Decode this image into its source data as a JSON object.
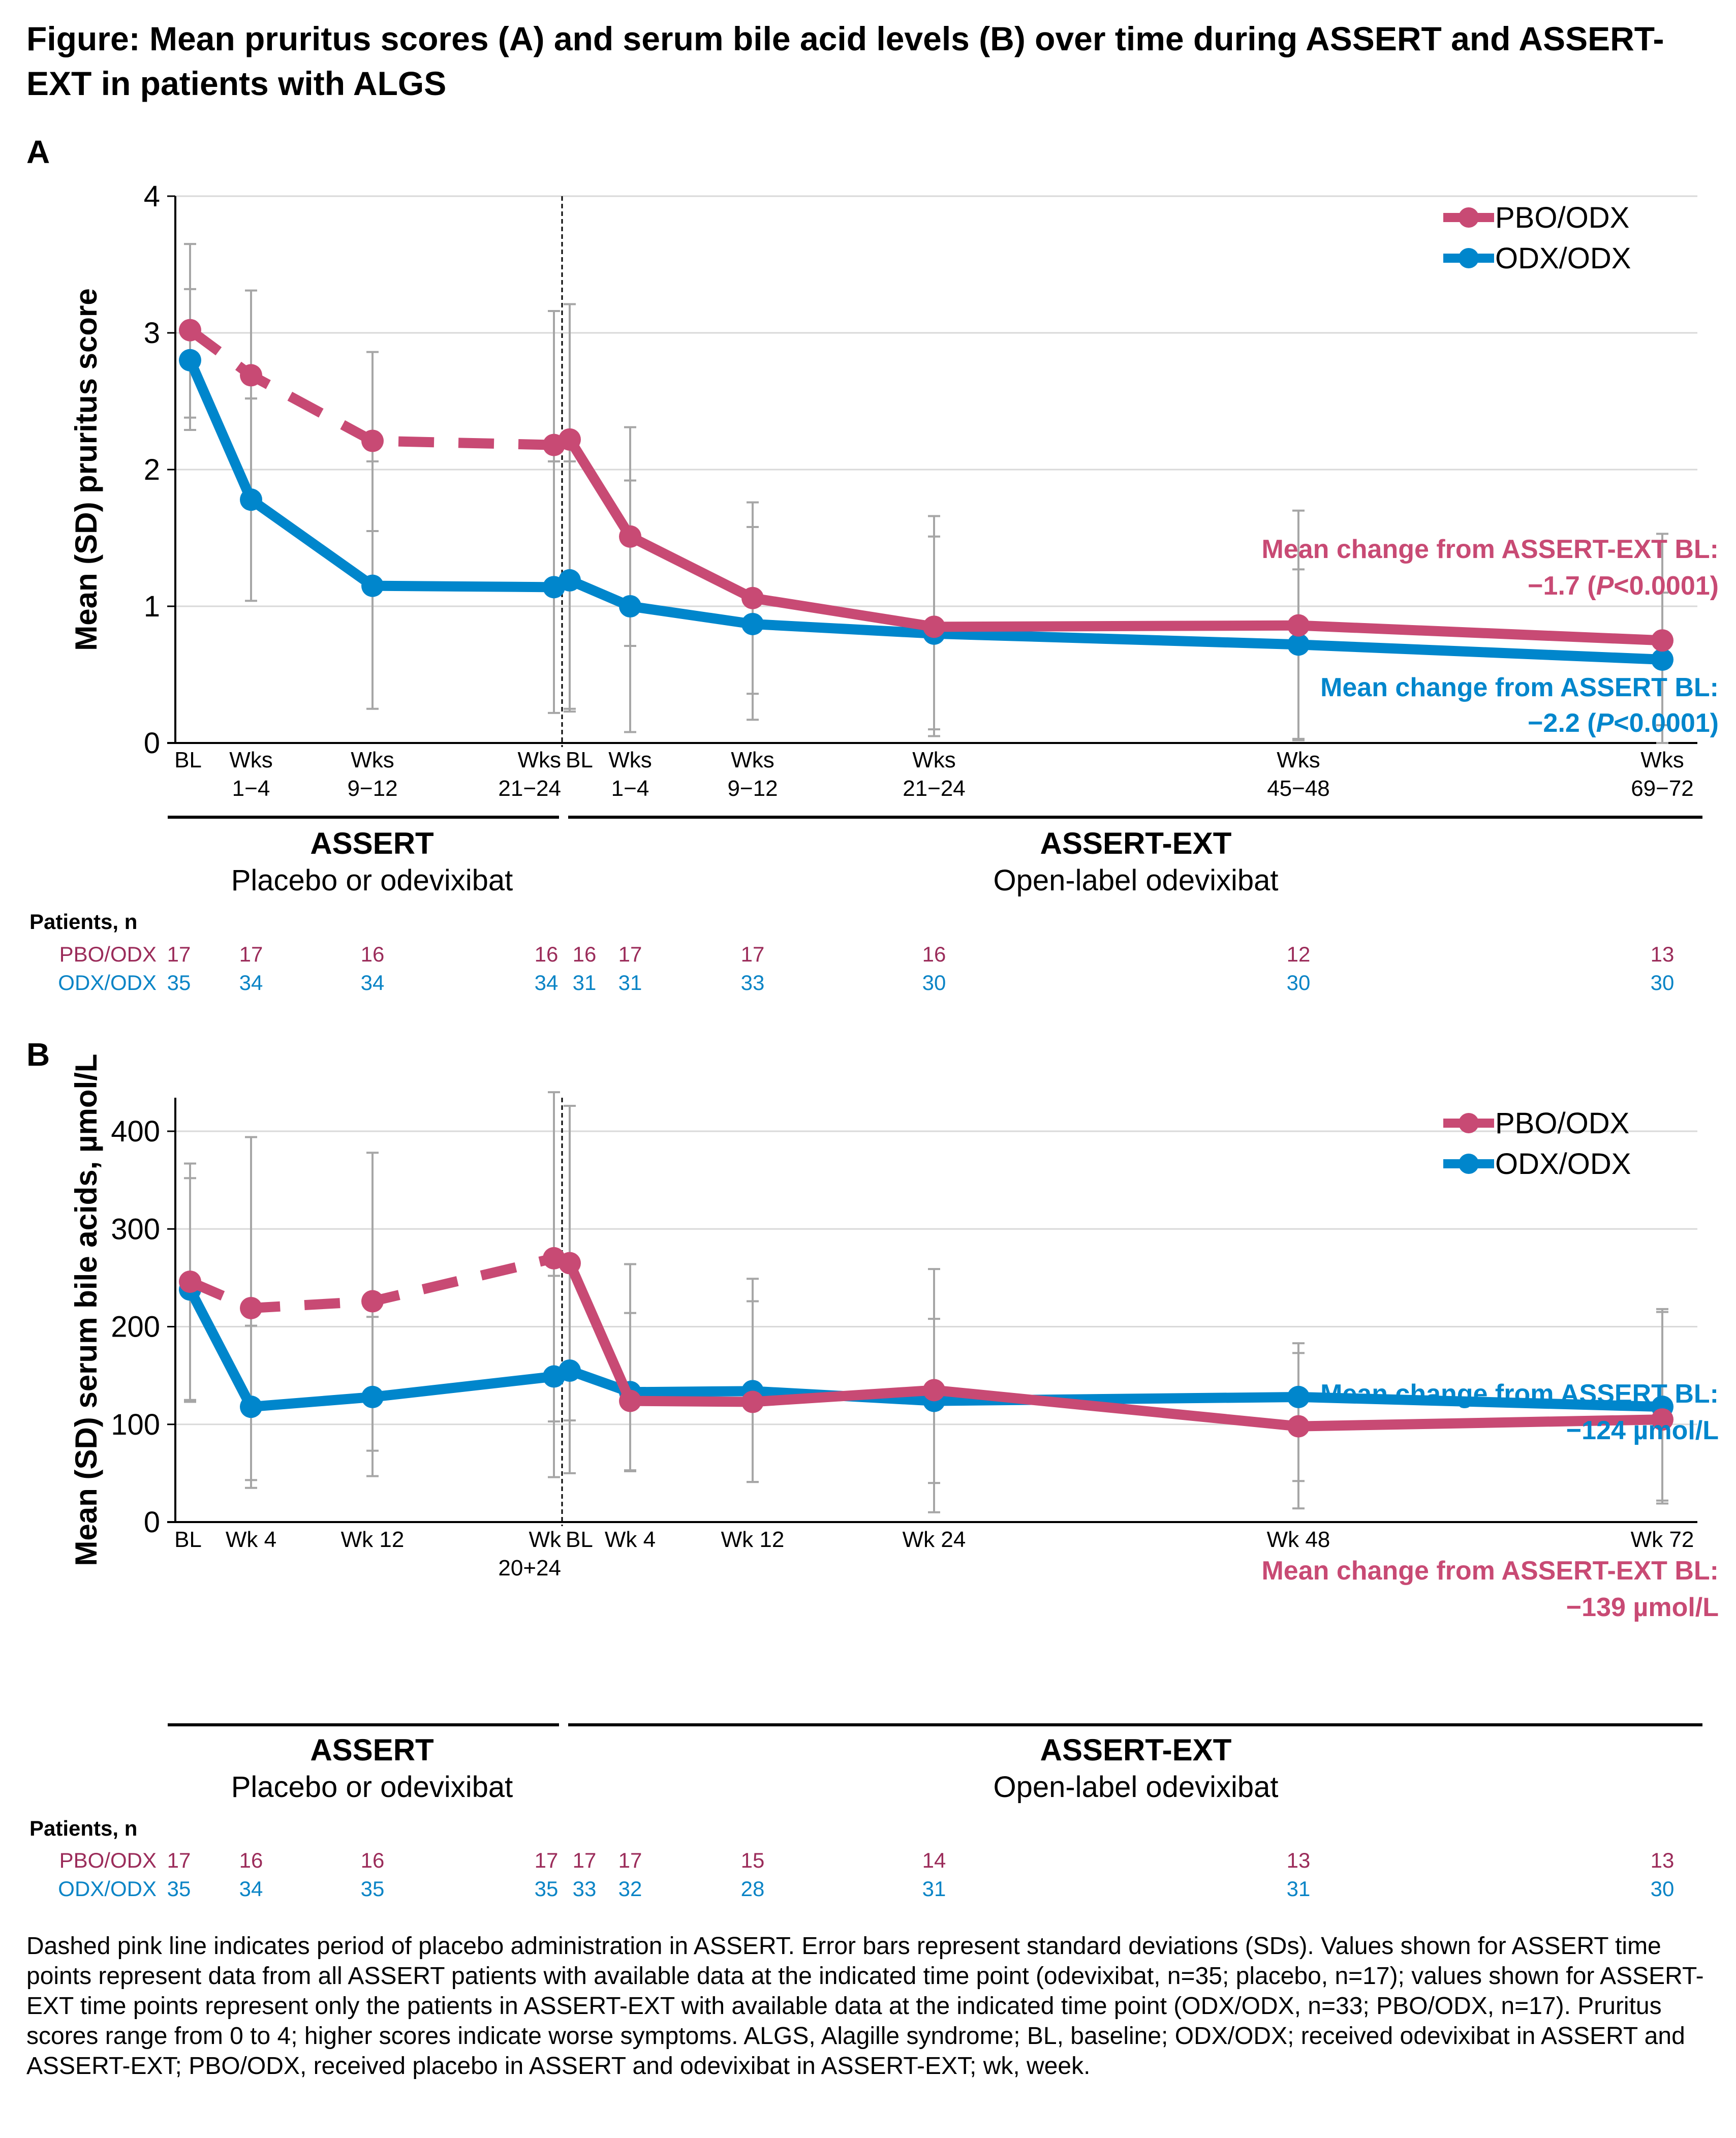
{
  "title": "Figure: Mean pruritus scores (A) and serum bile acid levels (B) over time during ASSERT and ASSERT-EXT in patients with ALGS",
  "colors": {
    "pbo": "#C84A74",
    "odx": "#0086CC",
    "pbo_n_text": "#9B2C5A",
    "odx_n_text": "#0A84C6",
    "error_bar": "#A6A6A6",
    "grid": "#D9D9D9"
  },
  "chart_data": [
    {
      "panel": "A",
      "type": "line",
      "ylabel": "Mean (SD) pruritus score",
      "ylim": [
        0,
        4
      ],
      "yticks": [
        0,
        1,
        2,
        3,
        4
      ],
      "grid": true,
      "legend_position": "top-right",
      "x_labels": [
        [
          "BL"
        ],
        [
          "Wks",
          "1−4"
        ],
        [
          "Wks",
          "9−12"
        ],
        [
          "Wks",
          "21−24"
        ],
        [
          "BL"
        ],
        [
          "Wks",
          "1−4"
        ],
        [
          "Wks",
          "9−12"
        ],
        [
          "Wks",
          "21−24"
        ],
        [
          "Wks",
          "45−48"
        ],
        [
          "Wks",
          "69−72"
        ]
      ],
      "x_weeks": [
        0,
        4,
        12,
        24,
        24,
        28,
        36,
        48,
        72,
        96
      ],
      "series": [
        {
          "name": "PBO/ODX",
          "values": [
            3.02,
            2.69,
            2.21,
            2.18,
            2.22,
            1.51,
            1.06,
            0.85,
            0.86,
            0.75
          ],
          "sd_upper": [
            3.65,
            3.31,
            2.86,
            3.16,
            3.21,
            2.31,
            1.76,
            1.66,
            1.7,
            1.53
          ],
          "sd_lower": [
            2.38,
            2.52,
            1.55,
            2.06,
            0.23,
            0.71,
            0.36,
            0.05,
            0.02,
            0.0
          ],
          "dashed_through_index": 3
        },
        {
          "name": "ODX/ODX",
          "values": [
            2.8,
            1.78,
            1.15,
            1.14,
            1.19,
            1.0,
            0.87,
            0.8,
            0.72,
            0.61
          ],
          "sd_upper": [
            3.32,
            2.52,
            2.06,
            2.06,
            2.06,
            1.92,
            1.58,
            1.51,
            1.27,
            1.1
          ],
          "sd_lower": [
            2.29,
            1.04,
            0.25,
            0.22,
            0.25,
            0.08,
            0.17,
            0.1,
            0.03,
            0.13
          ]
        }
      ],
      "annotations": [
        {
          "series": "PBO/ODX",
          "line1": "Mean change from ASSERT-EXT BL:",
          "line2_prefix": "−1.7 (",
          "line2_italic": "P",
          "line2_suffix": "<0.0001)"
        },
        {
          "series": "ODX/ODX",
          "line1": "Mean change from ASSERT BL:",
          "line2_prefix": "−2.2 (",
          "line2_italic": "P",
          "line2_suffix": "<0.0001)"
        }
      ],
      "groups": [
        {
          "title": "ASSERT",
          "subtitle": "Placebo or odevixibat"
        },
        {
          "title": "ASSERT-EXT",
          "subtitle": "Open-label odevixibat"
        }
      ],
      "patients": {
        "heading": "Patients, n",
        "rows": [
          {
            "label": "PBO/ODX",
            "values": [
              17,
              17,
              16,
              16,
              16,
              17,
              17,
              16,
              12,
              13
            ]
          },
          {
            "label": "ODX/ODX",
            "values": [
              35,
              34,
              34,
              34,
              31,
              31,
              33,
              30,
              30,
              30
            ]
          }
        ]
      }
    },
    {
      "panel": "B",
      "type": "line",
      "ylabel": "Mean (SD) serum bile acids, µmol/L",
      "ylim": [
        0,
        440
      ],
      "yticks": [
        0,
        100,
        200,
        300,
        400
      ],
      "grid": true,
      "legend_position": "top-right",
      "x_labels": [
        [
          "BL"
        ],
        [
          "Wk 4"
        ],
        [
          "Wk 12"
        ],
        [
          "Wk",
          "20+24"
        ],
        [
          "BL"
        ],
        [
          "Wk 4"
        ],
        [
          "Wk 12"
        ],
        [
          "Wk 24"
        ],
        [
          "Wk 48"
        ],
        [
          "Wk 72"
        ]
      ],
      "x_weeks": [
        0,
        4,
        12,
        24,
        24,
        28,
        36,
        48,
        72,
        96
      ],
      "series": [
        {
          "name": "PBO/ODX",
          "values": [
            246,
            219,
            226,
            270,
            265,
            124,
            123,
            135,
            98,
            105
          ],
          "sd_upper": [
            367,
            394,
            378,
            440,
            426,
            214,
            226,
            208,
            183,
            215
          ],
          "sd_lower": [
            125,
            43,
            73,
            103,
            104,
            53,
            41,
            10,
            14,
            22
          ],
          "dashed_through_index": 3
        },
        {
          "name": "ODX/ODX",
          "values": [
            238,
            118,
            128,
            149,
            155,
            133,
            134,
            124,
            128,
            118
          ],
          "sd_upper": [
            352,
            201,
            210,
            252,
            426,
            264,
            249,
            259,
            173,
            218
          ],
          "sd_lower": [
            123,
            35,
            47,
            46,
            50,
            52,
            41,
            40,
            42,
            19
          ]
        }
      ],
      "annotations": [
        {
          "series": "ODX/ODX",
          "line1": "Mean change from ASSERT BL:",
          "line2_prefix": "−124 µmol/L",
          "line2_italic": "",
          "line2_suffix": ""
        },
        {
          "series": "PBO/ODX",
          "line1": "Mean change from ASSERT-EXT BL:",
          "line2_prefix": "−139 µmol/L",
          "line2_italic": "",
          "line2_suffix": ""
        }
      ],
      "groups": [
        {
          "title": "ASSERT",
          "subtitle": "Placebo or odevixibat"
        },
        {
          "title": "ASSERT-EXT",
          "subtitle": "Open-label odevixibat"
        }
      ],
      "patients": {
        "heading": "Patients, n",
        "rows": [
          {
            "label": "PBO/ODX",
            "values": [
              17,
              16,
              16,
              17,
              17,
              17,
              15,
              14,
              13,
              13
            ]
          },
          {
            "label": "ODX/ODX",
            "values": [
              35,
              34,
              35,
              35,
              33,
              32,
              28,
              31,
              31,
              30
            ]
          }
        ]
      }
    }
  ],
  "footnote": "Dashed pink line indicates period of placebo administration in ASSERT. Error bars represent standard deviations (SDs). Values shown for ASSERT time points represent data from all ASSERT patients with available data at the indicated time point (odevixibat, n=35; placebo, n=17); values shown for ASSERT-EXT time points represent only the patients in ASSERT-EXT with available data at the indicated time point (ODX/ODX, n=33; PBO/ODX, n=17). Pruritus scores range from 0 to 4; higher scores indicate worse symptoms. ALGS, Alagille syndrome; BL, baseline; ODX/ODX; received odevixibat in ASSERT and ASSERT-EXT; PBO/ODX, received placebo in ASSERT and odevixibat in ASSERT-EXT; wk, week."
}
